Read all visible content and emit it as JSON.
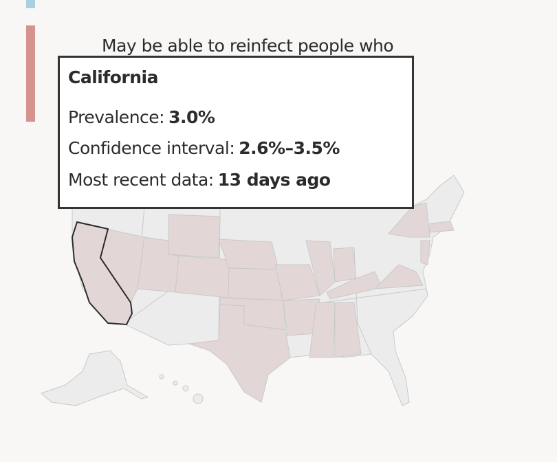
{
  "legend_text": "May be able to reinfect people who",
  "tooltip": {
    "title": "California",
    "rows": [
      {
        "label": "Prevalence:",
        "value": "3.0%"
      },
      {
        "label": "Confidence interval:",
        "value": "2.6%–3.5%"
      },
      {
        "label": "Most recent data:",
        "value": "13 days ago"
      }
    ]
  }
}
